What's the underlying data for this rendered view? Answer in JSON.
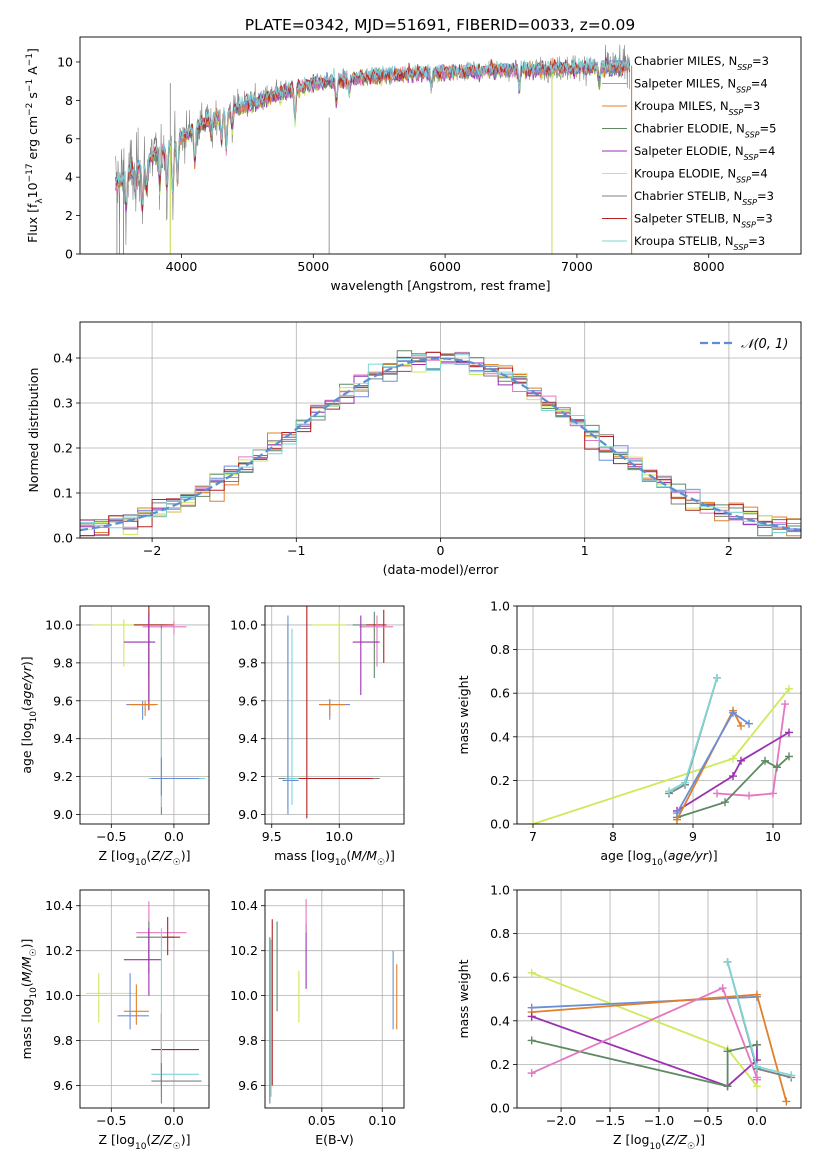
{
  "figure": {
    "title": "PLATE=0342, MJD=51691, FIBERID=0033, z=0.09"
  },
  "styles": {
    "palette": {
      "chabrier_miles": "#6a8fd8",
      "salpeter_miles": "#e377c2",
      "kroupa_miles": "#e0802a",
      "chabrier_elodie": "#5e8a64",
      "salpeter_elodie": "#9b30b0",
      "kroupa_elodie": "#cdea5a",
      "chabrier_stelib": "#808080",
      "salpeter_stelib": "#b22222",
      "kroupa_stelib": "#7fd6d6"
    }
  },
  "chart_data": [
    {
      "id": "spectrum",
      "type": "line",
      "xlabel": "wavelength [Angstrom, rest frame]",
      "ylabel": "Flux [f_λ10^-17 erg cm^-2 s^-1 A^-1]",
      "xlim": [
        3230,
        8700
      ],
      "ylim": [
        0,
        11.3
      ],
      "xticks": [
        4000,
        5000,
        6000,
        7000,
        8000
      ],
      "yticks": [
        0,
        2,
        4,
        6,
        8,
        10
      ],
      "grid": false,
      "legend_position": "right",
      "data_x_range": [
        3500,
        7400
      ],
      "legend": [
        {
          "label": "Chabrier MILES, N_SSP=3",
          "color_key": "chabrier_miles"
        },
        {
          "label": "Salpeter MILES, N_SSP=4",
          "color_key": "salpeter_miles"
        },
        {
          "label": "Kroupa MILES, N_SSP=3",
          "color_key": "kroupa_miles"
        },
        {
          "label": "Chabrier ELODIE, N_SSP=5",
          "color_key": "chabrier_elodie"
        },
        {
          "label": "Salpeter ELODIE, N_SSP=4",
          "color_key": "salpeter_elodie"
        },
        {
          "label": "Kroupa ELODIE, N_SSP=4",
          "color_key": "kroupa_elodie"
        },
        {
          "label": "Chabrier STELIB, N_SSP=3",
          "color_key": "chabrier_stelib"
        },
        {
          "label": "Salpeter STELIB, N_SSP=3",
          "color_key": "salpeter_stelib"
        },
        {
          "label": "Kroupa STELIB, N_SSP=3",
          "color_key": "kroupa_stelib"
        }
      ],
      "continuum": [
        [
          3500,
          3.6
        ],
        [
          3650,
          4.4
        ],
        [
          3800,
          5.2
        ],
        [
          3950,
          5.8
        ],
        [
          4100,
          6.6
        ],
        [
          4300,
          7.3
        ],
        [
          4500,
          7.8
        ],
        [
          4800,
          8.5
        ],
        [
          5000,
          8.9
        ],
        [
          5500,
          9.3
        ],
        [
          6000,
          9.5
        ],
        [
          6500,
          9.6
        ],
        [
          7000,
          9.7
        ],
        [
          7400,
          9.8
        ]
      ],
      "absorption_features": [
        [
          3580,
          1.5
        ],
        [
          3650,
          1.2
        ],
        [
          3705,
          2.3
        ],
        [
          3735,
          1.5
        ],
        [
          3835,
          1.8
        ],
        [
          3889,
          2.2
        ],
        [
          3934,
          2.6
        ],
        [
          3969,
          2.1
        ],
        [
          4101,
          1.9
        ],
        [
          4227,
          1.0
        ],
        [
          4304,
          1.5
        ],
        [
          4340,
          1.9
        ],
        [
          4384,
          0.9
        ],
        [
          4861,
          1.6
        ],
        [
          5176,
          1.2
        ],
        [
          5270,
          0.7
        ],
        [
          5895,
          0.8
        ],
        [
          6563,
          1.0
        ],
        [
          7170,
          0.9
        ]
      ],
      "noise_sigma": [
        [
          3500,
          2.3
        ],
        [
          4000,
          1.2
        ],
        [
          4500,
          0.8
        ],
        [
          5000,
          0.45
        ],
        [
          6500,
          0.4
        ],
        [
          7000,
          0.7
        ],
        [
          7400,
          0.9
        ]
      ],
      "spikes": [
        [
          3510,
          3.2
        ],
        [
          3530,
          3.0
        ],
        [
          3560,
          2.5
        ],
        [
          3915,
          8.9
        ],
        [
          5120,
          7.1
        ],
        [
          6810,
          9.0
        ],
        [
          7415,
          9.8
        ]
      ]
    },
    {
      "id": "residuals",
      "type": "bar",
      "xlabel": "(data-model)/error",
      "ylabel": "Normed distribution",
      "xlim": [
        -2.5,
        2.5
      ],
      "ylim": [
        0,
        0.48
      ],
      "xticks": [
        -2,
        -1,
        0,
        1,
        2
      ],
      "yticks": [
        0.0,
        0.1,
        0.2,
        0.3,
        0.4
      ],
      "grid": true,
      "legend": [
        {
          "label": "𝒩(0, 1)",
          "style": "dashed",
          "color": "#5b8ed6"
        }
      ],
      "legend_position": "top-right",
      "bin_width": 0.1
    },
    {
      "id": "age_vs_Z",
      "type": "scatter",
      "xlabel": "Z [log10(Z/Z☉)]",
      "ylabel": "age  [log10(age/yr)]",
      "xlim": [
        -0.75,
        0.28
      ],
      "ylim": [
        8.95,
        10.1
      ],
      "xticks": [
        -0.5,
        0.0
      ],
      "yticks": [
        9.0,
        9.2,
        9.4,
        9.6,
        9.8,
        10.0
      ],
      "grid": true,
      "errorbars": [
        {
          "c": "kroupa_elodie",
          "x": -0.4,
          "y": 10.0,
          "xlo": -0.65,
          "xhi": -0.1,
          "ylo": 9.78,
          "yhi": 10.03
        },
        {
          "c": "chabrier_elodie",
          "x": -0.2,
          "y": 10.0,
          "xlo": -0.32,
          "xhi": -0.05,
          "ylo": 9.72,
          "yhi": 10.07
        },
        {
          "c": "salpeter_stelib",
          "x": -0.2,
          "y": 10.0,
          "xlo": -0.32,
          "xhi": 0.0,
          "ylo": 9.55,
          "yhi": 10.1
        },
        {
          "c": "salpeter_miles",
          "x": 0.0,
          "y": 9.99,
          "xlo": -0.25,
          "xhi": 0.1,
          "ylo": 9.95,
          "yhi": 10.02
        },
        {
          "c": "salpeter_elodie",
          "x": -0.2,
          "y": 9.91,
          "xlo": -0.4,
          "xhi": -0.15,
          "ylo": 9.6,
          "yhi": 10.05
        },
        {
          "c": "chabrier_miles",
          "x": -0.25,
          "y": 9.58,
          "xlo": -0.38,
          "xhi": -0.15,
          "ylo": 9.5,
          "yhi": 9.6
        },
        {
          "c": "kroupa_miles",
          "x": -0.23,
          "y": 9.58,
          "xlo": -0.36,
          "xhi": -0.13,
          "ylo": 9.52,
          "yhi": 9.6
        },
        {
          "c": "chabrier_stelib",
          "x": -0.1,
          "y": 9.19,
          "xlo": -0.2,
          "xhi": 0.22,
          "ylo": 9.0,
          "yhi": 10.0
        },
        {
          "c": "kroupa_stelib",
          "x": -0.1,
          "y": 9.19,
          "xlo": -0.2,
          "xhi": 0.25,
          "ylo": 9.04,
          "yhi": 9.98
        },
        {
          "c": "chabrier_miles",
          "x": -0.1,
          "y": 9.19,
          "xlo": -0.18,
          "xhi": 0.2,
          "ylo": 9.1,
          "yhi": 9.3
        }
      ]
    },
    {
      "id": "age_vs_mass",
      "type": "scatter",
      "xlabel": "mass [log10(M/M☉)]",
      "ylabel": "",
      "xlim": [
        9.45,
        10.48
      ],
      "ylim": [
        8.95,
        10.1
      ],
      "xticks": [
        9.5,
        10.0
      ],
      "yticks": [
        9.0,
        9.2,
        9.4,
        9.6,
        9.8,
        10.0
      ],
      "grid": true,
      "errorbars": [
        {
          "c": "kroupa_elodie",
          "x": 10.0,
          "y": 10.0,
          "xlo": 9.8,
          "xhi": 10.05,
          "ylo": 9.8,
          "yhi": 10.03
        },
        {
          "c": "chabrier_elodie",
          "x": 10.26,
          "y": 10.0,
          "xlo": 10.1,
          "xhi": 10.3,
          "ylo": 9.72,
          "yhi": 10.07
        },
        {
          "c": "salpeter_stelib",
          "x": 10.33,
          "y": 10.0,
          "xlo": 10.2,
          "xhi": 10.35,
          "ylo": 9.8,
          "yhi": 10.08
        },
        {
          "c": "salpeter_miles",
          "x": 10.28,
          "y": 9.99,
          "xlo": 10.15,
          "xhi": 10.4,
          "ylo": 9.78,
          "yhi": 10.05
        },
        {
          "c": "salpeter_elodie",
          "x": 10.16,
          "y": 9.91,
          "xlo": 10.1,
          "xhi": 10.3,
          "ylo": 9.63,
          "yhi": 10.05
        },
        {
          "c": "chabrier_miles",
          "x": 9.93,
          "y": 9.58,
          "xlo": 9.86,
          "xhi": 10.08,
          "ylo": 9.5,
          "yhi": 9.61
        },
        {
          "c": "kroupa_miles",
          "x": 9.93,
          "y": 9.58,
          "xlo": 9.85,
          "xhi": 10.05,
          "ylo": 9.52,
          "yhi": 9.6
        },
        {
          "c": "chabrier_stelib",
          "x": 9.62,
          "y": 9.19,
          "xlo": 9.55,
          "xhi": 10.3,
          "ylo": 9.03,
          "yhi": 10.0
        },
        {
          "c": "kroupa_stelib",
          "x": 9.65,
          "y": 9.19,
          "xlo": 9.6,
          "xhi": 10.1,
          "ylo": 9.05,
          "yhi": 9.98
        },
        {
          "c": "salpeter_stelib",
          "x": 9.76,
          "y": 9.19,
          "xlo": 9.7,
          "xhi": 10.25,
          "ylo": 8.98,
          "yhi": 10.12
        },
        {
          "c": "chabrier_miles",
          "x": 9.62,
          "y": 9.18,
          "xlo": 9.58,
          "xhi": 9.7,
          "ylo": 9.0,
          "yhi": 10.05
        }
      ]
    },
    {
      "id": "weight_vs_age",
      "type": "line",
      "xlabel": "age  [log10(age/yr)]",
      "ylabel": "mass weight",
      "xlim": [
        6.8,
        10.35
      ],
      "ylim": [
        0,
        1.0
      ],
      "xticks": [
        7,
        8,
        9,
        10
      ],
      "yticks": [
        0.0,
        0.2,
        0.4,
        0.6,
        0.8,
        1.0
      ],
      "grid": true,
      "series": [
        {
          "c": "kroupa_elodie",
          "x": [
            7.0,
            9.5,
            10.2
          ],
          "y": [
            0.0,
            0.3,
            0.62
          ]
        },
        {
          "c": "salpeter_miles",
          "x": [
            9.3,
            9.7,
            10.0,
            10.15
          ],
          "y": [
            0.14,
            0.13,
            0.14,
            0.55
          ]
        },
        {
          "c": "salpeter_elodie",
          "x": [
            8.8,
            9.5,
            9.6,
            10.2
          ],
          "y": [
            0.06,
            0.22,
            0.29,
            0.42
          ]
        },
        {
          "c": "chabrier_elodie",
          "x": [
            8.8,
            9.4,
            9.9,
            10.05,
            10.2
          ],
          "y": [
            0.03,
            0.1,
            0.29,
            0.26,
            0.31
          ]
        },
        {
          "c": "kroupa_miles",
          "x": [
            8.8,
            9.5,
            9.6
          ],
          "y": [
            0.02,
            0.52,
            0.45
          ]
        },
        {
          "c": "chabrier_miles",
          "x": [
            8.8,
            9.5,
            9.7
          ],
          "y": [
            0.05,
            0.51,
            0.46
          ]
        },
        {
          "c": "chabrier_stelib",
          "x": [
            8.7,
            8.9,
            9.3
          ],
          "y": [
            0.14,
            0.18,
            0.67
          ]
        },
        {
          "c": "kroupa_stelib",
          "x": [
            8.7,
            8.9,
            9.3
          ],
          "y": [
            0.15,
            0.19,
            0.67
          ]
        }
      ]
    },
    {
      "id": "mass_vs_Z",
      "type": "scatter",
      "xlabel": "Z [log10(Z/Z☉)]",
      "ylabel": "mass [log10(M/M☉)]",
      "xlim": [
        -0.75,
        0.28
      ],
      "ylim": [
        9.5,
        10.47
      ],
      "xticks": [
        -0.5,
        0.0
      ],
      "yticks": [
        9.6,
        9.8,
        10.0,
        10.2,
        10.4
      ],
      "grid": true,
      "errorbars": [
        {
          "c": "kroupa_elodie",
          "x": -0.6,
          "y": 10.01,
          "xlo": -0.7,
          "xhi": -0.3,
          "ylo": 9.88,
          "yhi": 10.1
        },
        {
          "c": "salpeter_miles",
          "x": -0.2,
          "y": 10.28,
          "xlo": -0.3,
          "xhi": 0.1,
          "ylo": 10.15,
          "yhi": 10.42
        },
        {
          "c": "chabrier_elodie",
          "x": -0.2,
          "y": 10.26,
          "xlo": -0.3,
          "xhi": 0.0,
          "ylo": 10.1,
          "yhi": 10.33
        },
        {
          "c": "salpeter_stelib",
          "x": -0.05,
          "y": 10.26,
          "xlo": -0.1,
          "xhi": 0.05,
          "ylo": 10.18,
          "yhi": 10.35
        },
        {
          "c": "salpeter_elodie",
          "x": -0.2,
          "y": 10.16,
          "xlo": -0.4,
          "xhi": -0.1,
          "ylo": 10.0,
          "yhi": 10.3
        },
        {
          "c": "chabrier_miles",
          "x": -0.35,
          "y": 9.91,
          "xlo": -0.45,
          "xhi": -0.2,
          "ylo": 9.85,
          "yhi": 10.1
        },
        {
          "c": "kroupa_miles",
          "x": -0.3,
          "y": 9.93,
          "xlo": -0.4,
          "xhi": -0.2,
          "ylo": 9.87,
          "yhi": 10.05
        },
        {
          "c": "salpeter_stelib",
          "x": -0.1,
          "y": 9.76,
          "xlo": -0.18,
          "xhi": 0.2,
          "ylo": 9.6,
          "yhi": 9.92
        },
        {
          "c": "kroupa_stelib",
          "x": -0.1,
          "y": 9.65,
          "xlo": -0.18,
          "xhi": 0.2,
          "ylo": 9.55,
          "yhi": 10.3
        },
        {
          "c": "chabrier_stelib",
          "x": -0.1,
          "y": 9.62,
          "xlo": -0.18,
          "xhi": 0.22,
          "ylo": 9.52,
          "yhi": 9.7
        }
      ]
    },
    {
      "id": "mass_vs_EBV",
      "type": "scatter",
      "xlabel": "E(B-V)",
      "ylabel": "",
      "xlim": [
        0.003,
        0.118
      ],
      "ylim": [
        9.5,
        10.47
      ],
      "xticks": [
        0.05,
        0.1
      ],
      "yticks": [
        9.6,
        9.8,
        10.0,
        10.2,
        10.4
      ],
      "grid": true,
      "vlines": [
        {
          "c": "chabrier_stelib",
          "x": 0.007,
          "ylo": 9.52,
          "yhi": 10.26
        },
        {
          "c": "kroupa_stelib",
          "x": 0.008,
          "ylo": 9.55,
          "yhi": 10.25
        },
        {
          "c": "salpeter_stelib",
          "x": 0.009,
          "ylo": 9.6,
          "yhi": 10.34
        },
        {
          "c": "chabrier_elodie",
          "x": 0.013,
          "ylo": 9.93,
          "yhi": 10.33
        },
        {
          "c": "kroupa_elodie",
          "x": 0.031,
          "ylo": 9.88,
          "yhi": 10.11
        },
        {
          "c": "salpeter_elodie",
          "x": 0.037,
          "ylo": 10.03,
          "yhi": 10.32
        },
        {
          "c": "salpeter_miles",
          "x": 0.037,
          "ylo": 10.28,
          "yhi": 10.43
        },
        {
          "c": "chabrier_miles",
          "x": 0.109,
          "ylo": 9.85,
          "yhi": 10.2
        },
        {
          "c": "kroupa_miles",
          "x": 0.112,
          "ylo": 9.85,
          "yhi": 10.14
        }
      ]
    },
    {
      "id": "weight_vs_Z",
      "type": "line",
      "xlabel": "Z [log10(Z/Z☉)]",
      "ylabel": "mass weight",
      "xlim": [
        -2.45,
        0.45
      ],
      "ylim": [
        0,
        1.0
      ],
      "xticks": [
        -2.0,
        -1.5,
        -1.0,
        -0.5,
        0.0
      ],
      "yticks": [
        0.0,
        0.2,
        0.4,
        0.6,
        0.8,
        1.0
      ],
      "grid": true,
      "series": [
        {
          "c": "kroupa_elodie",
          "x": [
            -2.3,
            -0.3,
            0.0
          ],
          "y": [
            0.62,
            0.27,
            0.1
          ]
        },
        {
          "c": "chabrier_miles",
          "x": [
            -2.3,
            0.0
          ],
          "y": [
            0.46,
            0.51
          ]
        },
        {
          "c": "kroupa_miles",
          "x": [
            -2.3,
            0.0,
            0.3
          ],
          "y": [
            0.44,
            0.52,
            0.03
          ]
        },
        {
          "c": "salpeter_elodie",
          "x": [
            -2.3,
            -0.3,
            0.0,
            0.0
          ],
          "y": [
            0.42,
            0.1,
            0.22,
            0.29
          ]
        },
        {
          "c": "chabrier_elodie",
          "x": [
            -2.3,
            -0.3,
            -0.3,
            0.0
          ],
          "y": [
            0.31,
            0.1,
            0.26,
            0.29
          ]
        },
        {
          "c": "salpeter_miles",
          "x": [
            -2.3,
            -0.35,
            0.0,
            0.0
          ],
          "y": [
            0.16,
            0.55,
            0.14,
            0.13
          ]
        },
        {
          "c": "chabrier_stelib",
          "x": [
            -0.3,
            0.0,
            0.35
          ],
          "y": [
            0.67,
            0.18,
            0.14
          ]
        },
        {
          "c": "kroupa_stelib",
          "x": [
            -0.3,
            0.0,
            0.35
          ],
          "y": [
            0.67,
            0.19,
            0.15
          ]
        }
      ]
    }
  ]
}
